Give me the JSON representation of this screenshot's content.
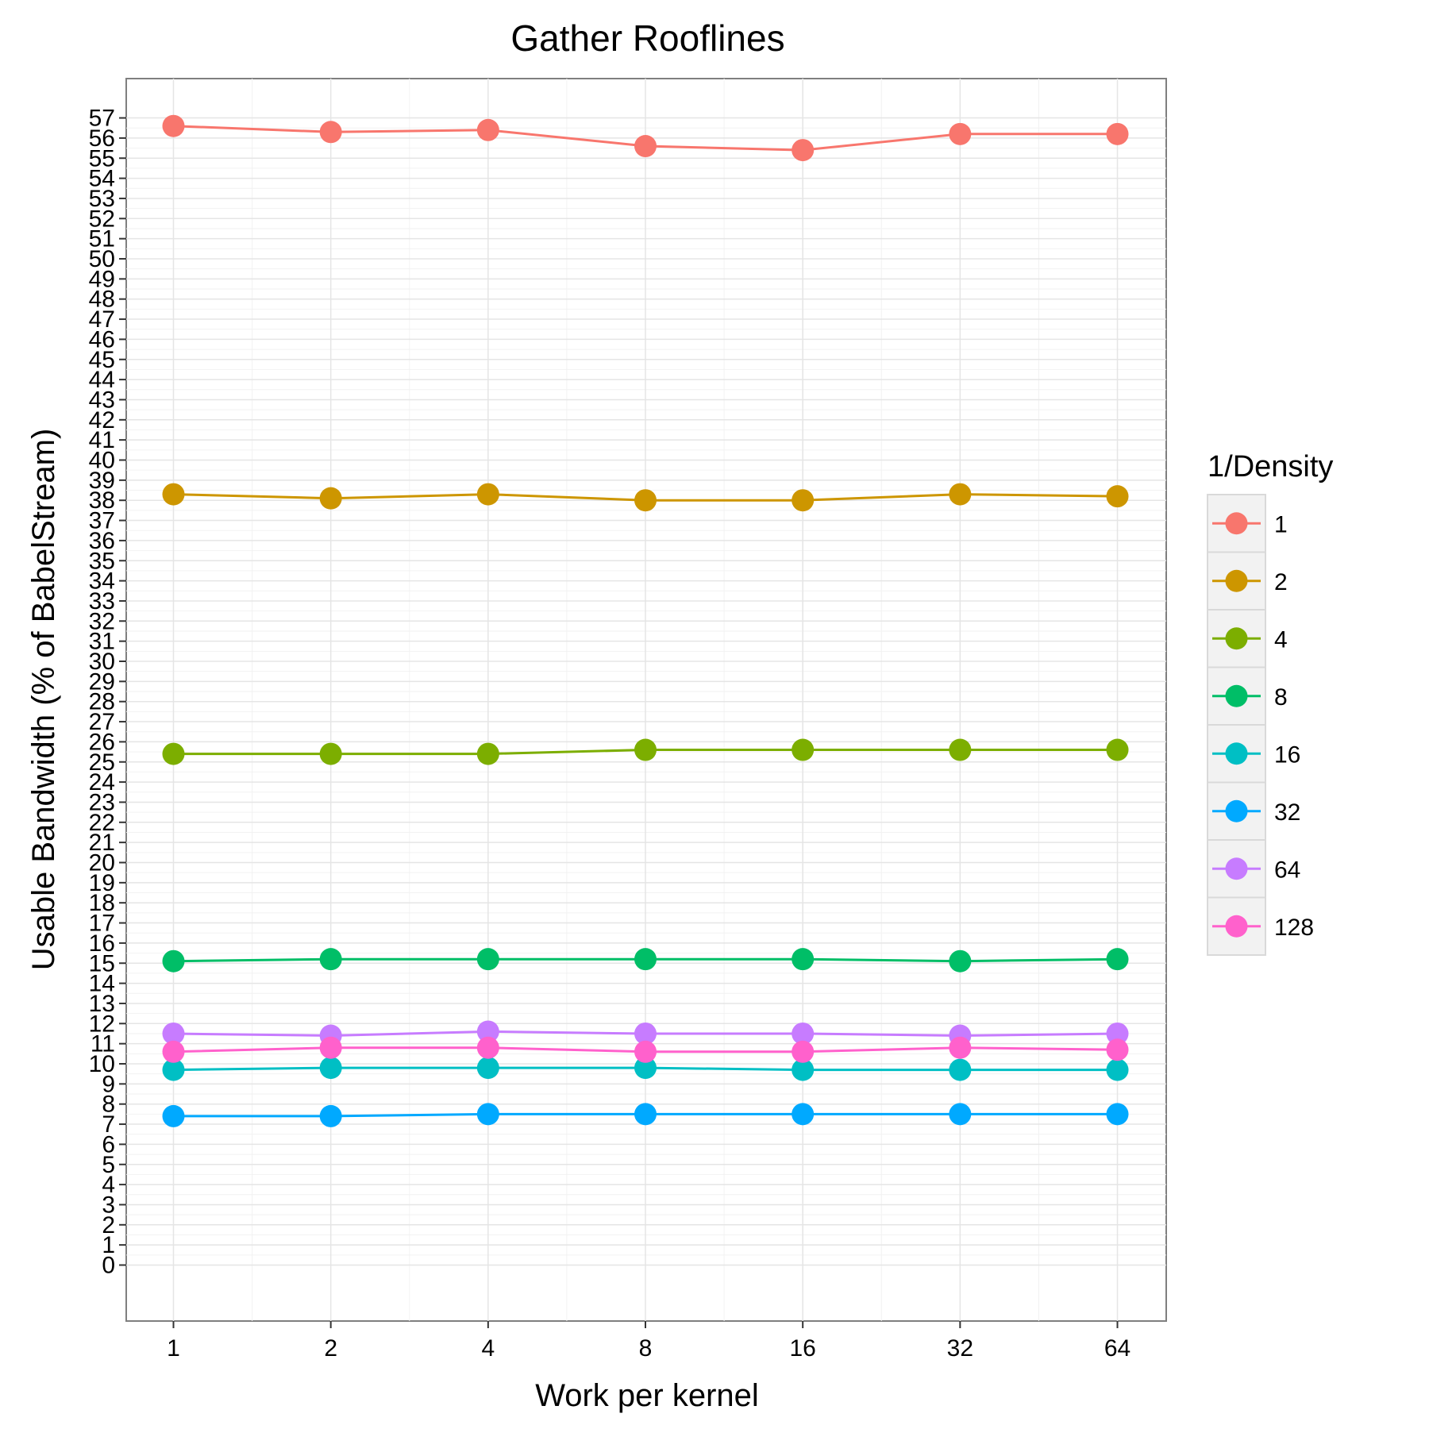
{
  "chart_data": {
    "type": "line",
    "title": "Gather Rooflines",
    "xlabel": "Work per kernel",
    "ylabel": "Usable Bandwidth (% of BabelStream)",
    "x_scale": "log2",
    "categories": [
      "1",
      "2",
      "4",
      "8",
      "16",
      "32",
      "64"
    ],
    "x": [
      1,
      2,
      4,
      8,
      16,
      32,
      64
    ],
    "ylim": [
      -2.5,
      59
    ],
    "yticks": [
      0,
      1,
      2,
      3,
      4,
      5,
      6,
      7,
      8,
      9,
      10,
      11,
      12,
      13,
      14,
      15,
      16,
      17,
      18,
      19,
      20,
      21,
      22,
      23,
      24,
      25,
      26,
      27,
      28,
      29,
      30,
      31,
      32,
      33,
      34,
      35,
      36,
      37,
      38,
      39,
      40,
      41,
      42,
      43,
      44,
      45,
      46,
      47,
      48,
      49,
      50,
      51,
      52,
      53,
      54,
      55,
      56,
      57
    ],
    "grid": true,
    "legend_title": "1/Density",
    "legend_position": "right",
    "series": [
      {
        "name": "1",
        "color": "#F8766D",
        "values": [
          56.6,
          56.3,
          56.4,
          55.6,
          55.4,
          56.2,
          56.2
        ]
      },
      {
        "name": "2",
        "color": "#CD9600",
        "values": [
          38.3,
          38.1,
          38.3,
          38.0,
          38.0,
          38.3,
          38.2
        ]
      },
      {
        "name": "4",
        "color": "#7CAE00",
        "values": [
          25.4,
          25.4,
          25.4,
          25.6,
          25.6,
          25.6,
          25.6
        ]
      },
      {
        "name": "8",
        "color": "#00BE67",
        "values": [
          15.1,
          15.2,
          15.2,
          15.2,
          15.2,
          15.1,
          15.2
        ]
      },
      {
        "name": "16",
        "color": "#00BFC4",
        "values": [
          9.7,
          9.8,
          9.8,
          9.8,
          9.7,
          9.7,
          9.7
        ]
      },
      {
        "name": "32",
        "color": "#00A9FF",
        "values": [
          7.4,
          7.4,
          7.5,
          7.5,
          7.5,
          7.5,
          7.5
        ]
      },
      {
        "name": "64",
        "color": "#C77CFF",
        "values": [
          11.5,
          11.4,
          11.6,
          11.5,
          11.5,
          11.4,
          11.5
        ]
      },
      {
        "name": "128",
        "color": "#FF61CC",
        "values": [
          10.6,
          10.8,
          10.8,
          10.6,
          10.6,
          10.8,
          10.7
        ]
      }
    ]
  }
}
